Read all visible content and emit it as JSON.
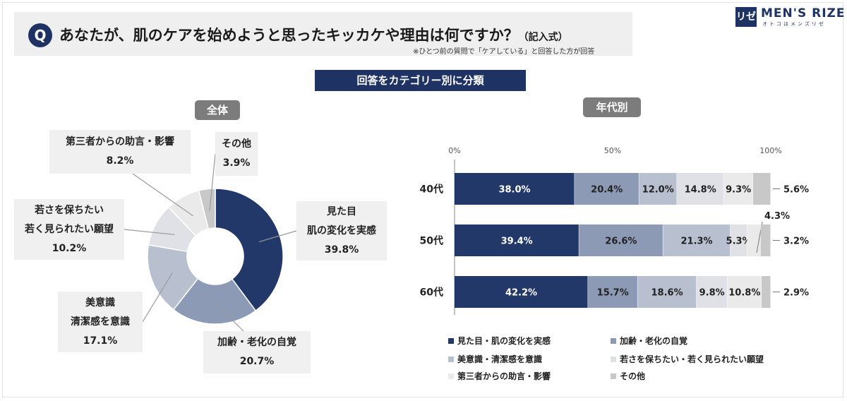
{
  "header": {
    "q_badge": "Q",
    "title": "あなたが、肌のケアを始めようと思ったキッカケや理由は何ですか？",
    "title_suffix": "（記入式）",
    "note": "※ひとつ前の質問で「ケアしている」と回答した方が回答"
  },
  "logo": {
    "mark": "リゼ",
    "name": "MEN'S RIZE",
    "tagline": "オトコはメンズリゼ"
  },
  "banner": "回答をカテゴリー別に分類",
  "left_pill": "全体",
  "right_pill": "年代別",
  "colors": [
    "#213869",
    "#8d9ab6",
    "#b8bfcf",
    "#dfe1e7",
    "#eaeaea",
    "#c8c8c8"
  ],
  "chart_data": [
    {
      "type": "pie",
      "title": "全体",
      "categories": [
        "見た目・肌の変化を実感",
        "加齢・老化の自覚",
        "美意識・清潔感を意識",
        "若さを保ちたい・若く見られたい願望",
        "第三者からの助言・影響",
        "その他"
      ],
      "values": [
        39.8,
        20.7,
        17.1,
        10.2,
        8.2,
        3.9
      ],
      "labels": [
        [
          "見た目",
          "肌の変化を実感",
          "39.8%"
        ],
        [
          "加齢・老化の自覚",
          "20.7%"
        ],
        [
          "美意識",
          "清潔感を意識",
          "17.1%"
        ],
        [
          "若さを保ちたい",
          "若く見られたい願望",
          "10.2%"
        ],
        [
          "第三者からの助言・影響",
          "8.2%"
        ],
        [
          "その他",
          "3.9%"
        ]
      ]
    },
    {
      "type": "bar",
      "stacked": true,
      "orientation": "horizontal",
      "title": "年代別",
      "categories": [
        "40代",
        "50代",
        "60代"
      ],
      "x_ticks": [
        "0%",
        "50%",
        "100%"
      ],
      "xlim": [
        0,
        100
      ],
      "series": [
        {
          "name": "見た目・肌の変化を実感",
          "values": [
            38.0,
            39.4,
            42.2
          ]
        },
        {
          "name": "加齢・老化の自覚",
          "values": [
            20.4,
            26.6,
            15.7
          ]
        },
        {
          "name": "美意識・清潔感を意識",
          "values": [
            12.0,
            21.3,
            18.6
          ]
        },
        {
          "name": "若さを保ちたい・若く見られたい願望",
          "values": [
            14.8,
            5.3,
            9.8
          ]
        },
        {
          "name": "第三者からの助言・影響",
          "values": [
            9.3,
            4.3,
            10.8
          ]
        },
        {
          "name": "その他",
          "values": [
            5.6,
            3.2,
            2.9
          ]
        }
      ],
      "value_labels": [
        [
          "38.0%",
          "20.4%",
          "12.0%",
          "14.8%",
          "9.3%",
          "5.6%"
        ],
        [
          "39.4%",
          "26.6%",
          "21.3%",
          "5.3%",
          "4.3%",
          "3.2%"
        ],
        [
          "42.2%",
          "15.7%",
          "18.6%",
          "9.8%",
          "10.8%",
          "2.9%"
        ]
      ],
      "legend": [
        "見た目・肌の変化を実感",
        "加齢・老化の自覚",
        "美意識・清潔感を意識",
        "若さを保ちたい・若く見られたい願望",
        "第三者からの助言・影響",
        "その他"
      ]
    }
  ]
}
